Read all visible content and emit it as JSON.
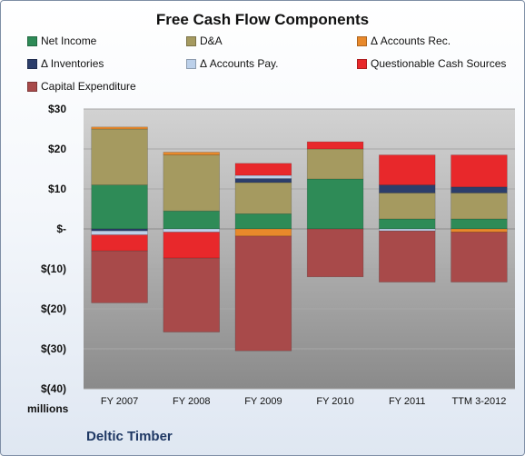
{
  "chart_data": {
    "type": "bar",
    "stacked": true,
    "title": "Free Cash Flow Components",
    "units_label": "millions",
    "source_label": "Deltic Timber",
    "categories": [
      "FY 2007",
      "FY 2008",
      "FY 2009",
      "FY 2010",
      "FY 2011",
      "TTM 3-2012"
    ],
    "ylim": [
      -40,
      30
    ],
    "yticks": [
      {
        "value": 30,
        "label": "$30"
      },
      {
        "value": 20,
        "label": "$20"
      },
      {
        "value": 10,
        "label": "$10"
      },
      {
        "value": 0,
        "label": "$-"
      },
      {
        "value": -10,
        "label": "$(10)"
      },
      {
        "value": -20,
        "label": "$(20)"
      },
      {
        "value": -30,
        "label": "$(30)"
      },
      {
        "value": -40,
        "label": "$(40)"
      }
    ],
    "grid": true,
    "legend_placement": "top",
    "series": [
      {
        "name": "Net Income",
        "color": "#2e8b57",
        "values": [
          11.0,
          4.5,
          3.8,
          12.5,
          2.5,
          2.5
        ]
      },
      {
        "name": "D&A",
        "color": "#a59a60",
        "values": [
          14.0,
          14.0,
          7.8,
          7.5,
          6.5,
          6.5
        ]
      },
      {
        "name": "Δ Accounts Rec.",
        "color": "#e8892b",
        "values": [
          0.5,
          0.7,
          -1.8,
          0.0,
          0.0,
          -0.8
        ]
      },
      {
        "name": "Δ Inventories",
        "color": "#2c3e6b",
        "values": [
          -0.5,
          0.0,
          1.0,
          0.0,
          2.0,
          1.5
        ]
      },
      {
        "name": "Δ Accounts Pay.",
        "color": "#bcd0ea",
        "values": [
          -1.0,
          -0.8,
          0.8,
          0.0,
          -0.5,
          0.0
        ]
      },
      {
        "name": "Questionable Cash Sources",
        "color": "#e8282b",
        "values": [
          -4.0,
          -6.5,
          3.0,
          1.8,
          7.5,
          8.0
        ]
      },
      {
        "name": "Capital Expenditure",
        "color": "#a84a4a",
        "values": [
          -13.0,
          -18.5,
          -28.7,
          -12.0,
          -12.8,
          -12.5
        ]
      }
    ]
  }
}
